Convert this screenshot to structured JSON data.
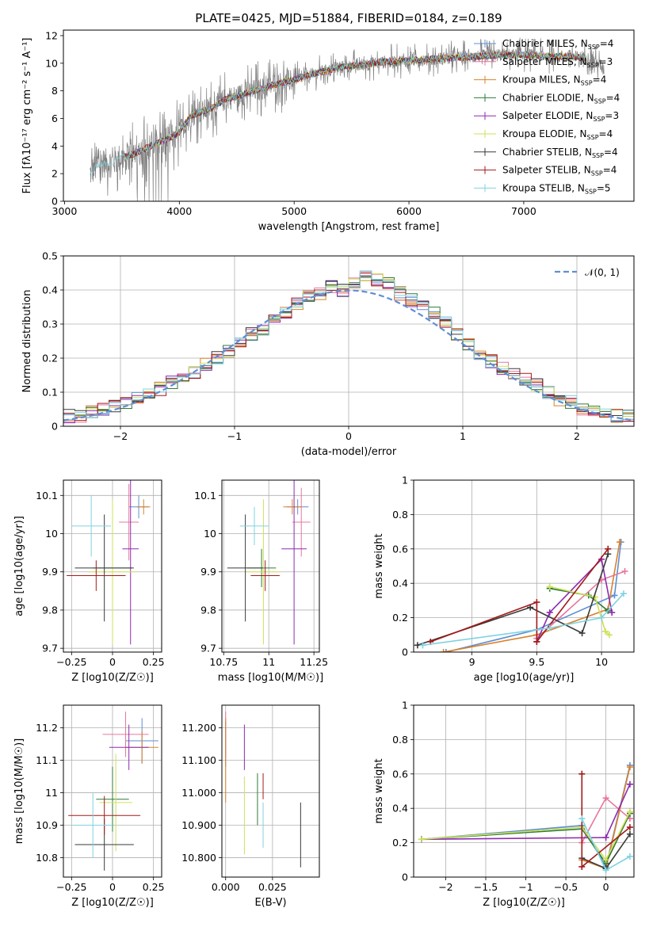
{
  "figure_title": "PLATE=0425, MJD=51884, FIBERID=0184, z=0.189",
  "colors": {
    "Chabrier MILES": "#5f8ed4",
    "Salpeter MILES": "#e8769e",
    "Kroupa MILES": "#d9822b",
    "Chabrier ELODIE": "#2f7a3a",
    "Salpeter ELODIE": "#8e2bb0",
    "Kroupa ELODIE": "#cfe05a",
    "Chabrier STELIB": "#3a3a3a",
    "Salpeter STELIB": "#a31a1a",
    "Kroupa STELIB": "#7fd3e0",
    "data": "#808080",
    "normal": "#5f8ed4"
  },
  "chart_data": [
    {
      "type": "line",
      "id": "spectrum",
      "title": "PLATE=0425, MJD=51884, FIBERID=0184, z=0.189",
      "xlabel": "wavelength [Angstrom, rest frame]",
      "ylabel": "Flux [fλ10⁻¹⁷ erg cm⁻² s⁻¹ A⁻¹]",
      "xlim": [
        2990,
        7960
      ],
      "ylim": [
        0,
        12.4
      ],
      "xticks": [
        3000,
        4000,
        5000,
        6000,
        7000
      ],
      "yticks": [
        0,
        2,
        4,
        6,
        8,
        10,
        12
      ],
      "grid": false,
      "legend_position": "right",
      "legend": [
        "Chabrier MILES, N_SSP=4",
        "Salpeter MILES, N_SSP=3",
        "Kroupa MILES, N_SSP=4",
        "Chabrier ELODIE, N_SSP=4",
        "Salpeter ELODIE, N_SSP=3",
        "Kroupa ELODIE, N_SSP=4",
        "Chabrier STELIB, N_SSP=4",
        "Salpeter STELIB, N_SSP=4",
        "Kroupa STELIB, N_SSP=5"
      ],
      "continuum": {
        "x": [
          3220,
          3300,
          3400,
          3500,
          3600,
          3700,
          3800,
          3900,
          4000,
          4100,
          4200,
          4300,
          4400,
          4500,
          4600,
          4700,
          4800,
          4900,
          5000,
          5200,
          5400,
          5600,
          5800,
          6000,
          6200,
          6400,
          6600,
          6800,
          7000,
          7200,
          7400,
          7600,
          7700
        ],
        "y": [
          2.0,
          2.7,
          2.8,
          3.2,
          3.4,
          3.8,
          4.2,
          4.5,
          5.0,
          6.2,
          6.5,
          6.8,
          7.4,
          7.6,
          7.9,
          8.1,
          8.4,
          8.6,
          8.8,
          9.3,
          9.7,
          9.9,
          10.1,
          10.2,
          10.3,
          10.4,
          10.5,
          10.6,
          10.6,
          10.5,
          10.5,
          10.3,
          9.5
        ]
      }
    },
    {
      "type": "bar",
      "id": "residuals",
      "xlabel": "(data-model)/error",
      "ylabel": "Normed distribution",
      "xlim": [
        -2.5,
        2.5
      ],
      "ylim": [
        0,
        0.5
      ],
      "xticks": [
        -2,
        -1,
        0,
        1,
        2
      ],
      "yticks": [
        0.0,
        0.1,
        0.2,
        0.3,
        0.4,
        0.5
      ],
      "grid": true,
      "legend_position": "top-right",
      "legend": [
        "𝒩(0, 1)"
      ],
      "bin_width": 0.1,
      "bins_start": -2.5,
      "values": [
        0.03,
        0.03,
        0.04,
        0.05,
        0.06,
        0.07,
        0.08,
        0.09,
        0.11,
        0.13,
        0.15,
        0.16,
        0.18,
        0.2,
        0.22,
        0.24,
        0.27,
        0.28,
        0.31,
        0.33,
        0.36,
        0.38,
        0.39,
        0.41,
        0.4,
        0.42,
        0.44,
        0.43,
        0.42,
        0.39,
        0.37,
        0.35,
        0.33,
        0.31,
        0.27,
        0.24,
        0.21,
        0.19,
        0.17,
        0.15,
        0.14,
        0.12,
        0.1,
        0.08,
        0.07,
        0.05,
        0.04,
        0.04,
        0.03,
        0.03
      ]
    },
    {
      "type": "scatter",
      "id": "age_vs_Z",
      "xlabel": "Z [log10(Z/Z☉)]",
      "ylabel": "age  [log10(age/yr)]",
      "xlim": [
        -0.3,
        0.3
      ],
      "ylim": [
        9.69,
        10.14
      ],
      "xticks": [
        -0.25,
        0.0,
        0.25
      ],
      "yticks": [
        9.7,
        9.8,
        9.9,
        10.0,
        10.1
      ],
      "grid": true,
      "points": [
        {
          "name": "Chabrier MILES",
          "x": 0.16,
          "y": 10.07,
          "xerr": 0.06,
          "yerr": 0.03
        },
        {
          "name": "Salpeter MILES",
          "x": 0.1,
          "y": 10.03,
          "xerr": 0.06,
          "yerr": 0.1
        },
        {
          "name": "Kroupa MILES",
          "x": 0.19,
          "y": 10.07,
          "xerr": 0.04,
          "yerr": 0.02
        },
        {
          "name": "Chabrier ELODIE",
          "x": 0.0,
          "y": 9.91,
          "xerr": 0.12,
          "yerr": 0.06
        },
        {
          "name": "Salpeter ELODIE",
          "x": 0.11,
          "y": 9.96,
          "xerr": 0.05,
          "yerr": 0.25
        },
        {
          "name": "Kroupa ELODIE",
          "x": 0.0,
          "y": 9.9,
          "xerr": 0.15,
          "yerr": 0.19
        },
        {
          "name": "Chabrier STELIB",
          "x": -0.05,
          "y": 9.91,
          "xerr": 0.18,
          "yerr": 0.14
        },
        {
          "name": "Salpeter STELIB",
          "x": -0.1,
          "y": 9.89,
          "xerr": 0.18,
          "yerr": 0.04
        },
        {
          "name": "Kroupa STELIB",
          "x": -0.13,
          "y": 10.02,
          "xerr": 0.12,
          "yerr": 0.08
        }
      ]
    },
    {
      "type": "scatter",
      "id": "age_vs_mass",
      "xlabel": "mass [log10(M/M☉)]",
      "ylabel": "",
      "xlim": [
        10.74,
        11.28
      ],
      "ylim": [
        9.69,
        10.14
      ],
      "xticks": [
        10.75,
        11.0,
        11.25
      ],
      "yticks": [
        9.7,
        9.8,
        9.9,
        10.0,
        10.1
      ],
      "grid": true,
      "points": [
        {
          "name": "Chabrier MILES",
          "x": 11.16,
          "y": 10.07,
          "xerr": 0.06,
          "yerr": 0.02
        },
        {
          "name": "Salpeter MILES",
          "x": 11.18,
          "y": 10.03,
          "xerr": 0.05,
          "yerr": 0.09
        },
        {
          "name": "Kroupa MILES",
          "x": 11.13,
          "y": 10.07,
          "xerr": 0.05,
          "yerr": 0.02
        },
        {
          "name": "Chabrier ELODIE",
          "x": 10.96,
          "y": 9.91,
          "xerr": 0.08,
          "yerr": 0.05
        },
        {
          "name": "Salpeter ELODIE",
          "x": 11.14,
          "y": 9.96,
          "xerr": 0.07,
          "yerr": 0.25
        },
        {
          "name": "Kroupa ELODIE",
          "x": 10.97,
          "y": 9.9,
          "xerr": 0.1,
          "yerr": 0.19
        },
        {
          "name": "Chabrier STELIB",
          "x": 10.87,
          "y": 9.91,
          "xerr": 0.1,
          "yerr": 0.14
        },
        {
          "name": "Salpeter STELIB",
          "x": 10.98,
          "y": 9.89,
          "xerr": 0.08,
          "yerr": 0.04
        },
        {
          "name": "Kroupa STELIB",
          "x": 10.92,
          "y": 10.02,
          "xerr": 0.08,
          "yerr": 0.05
        }
      ]
    },
    {
      "type": "line",
      "id": "weight_vs_age",
      "xlabel": "age  [log10(age/yr)]",
      "ylabel": "mass weight",
      "xlim": [
        8.55,
        10.25
      ],
      "ylim": [
        0,
        1.0
      ],
      "xticks": [
        9.0,
        9.5,
        10.0
      ],
      "yticks": [
        0.0,
        0.2,
        0.4,
        0.6,
        0.8,
        1.0
      ],
      "grid": true,
      "series": [
        {
          "name": "Chabrier MILES",
          "x": [
            8.8,
            9.5,
            10.1,
            10.15
          ],
          "y": [
            0.0,
            0.13,
            0.33,
            0.64
          ]
        },
        {
          "name": "Salpeter MILES",
          "x": [
            9.5,
            10.0,
            10.18
          ],
          "y": [
            0.08,
            0.42,
            0.47
          ]
        },
        {
          "name": "Kroupa MILES",
          "x": [
            8.78,
            9.5,
            10.05,
            10.14
          ],
          "y": [
            0.0,
            0.1,
            0.25,
            0.64
          ]
        },
        {
          "name": "Chabrier ELODIE",
          "x": [
            9.6,
            9.9,
            10.05
          ],
          "y": [
            0.37,
            0.33,
            0.24
          ]
        },
        {
          "name": "Salpeter ELODIE",
          "x": [
            9.5,
            9.6,
            10.0,
            10.08
          ],
          "y": [
            0.06,
            0.23,
            0.54,
            0.23
          ]
        },
        {
          "name": "Kroupa ELODIE",
          "x": [
            9.6,
            9.95,
            10.03,
            10.06
          ],
          "y": [
            0.38,
            0.32,
            0.12,
            0.1
          ]
        },
        {
          "name": "Chabrier STELIB",
          "x": [
            8.58,
            9.45,
            9.85,
            10.05
          ],
          "y": [
            0.04,
            0.26,
            0.11,
            0.57
          ]
        },
        {
          "name": "Salpeter STELIB",
          "x": [
            8.68,
            9.5,
            9.5,
            10.05
          ],
          "y": [
            0.06,
            0.29,
            0.06,
            0.6
          ]
        },
        {
          "name": "Kroupa STELIB",
          "x": [
            8.62,
            9.6,
            10.0,
            10.17
          ],
          "y": [
            0.04,
            0.14,
            0.2,
            0.34
          ]
        }
      ]
    },
    {
      "type": "scatter",
      "id": "mass_vs_Z",
      "xlabel": "Z [log10(Z/Z☉)]",
      "ylabel": "mass [log10(M/M☉)]",
      "xlim": [
        -0.3,
        0.3
      ],
      "ylim": [
        10.74,
        11.27
      ],
      "xticks": [
        -0.25,
        0.0,
        0.25
      ],
      "yticks": [
        10.8,
        10.9,
        11.0,
        11.1,
        11.2
      ],
      "grid": true,
      "points": [
        {
          "name": "Chabrier MILES",
          "x": 0.18,
          "y": 11.16,
          "xerr": 0.1,
          "yerr": 0.07
        },
        {
          "name": "Salpeter MILES",
          "x": 0.08,
          "y": 11.18,
          "xerr": 0.14,
          "yerr": 0.07
        },
        {
          "name": "Kroupa MILES",
          "x": 0.18,
          "y": 11.14,
          "xerr": 0.1,
          "yerr": 0.05
        },
        {
          "name": "Chabrier ELODIE",
          "x": 0.0,
          "y": 10.98,
          "xerr": 0.1,
          "yerr": 0.1
        },
        {
          "name": "Salpeter ELODIE",
          "x": 0.1,
          "y": 11.14,
          "xerr": 0.12,
          "yerr": 0.07
        },
        {
          "name": "Kroupa ELODIE",
          "x": 0.02,
          "y": 10.97,
          "xerr": 0.1,
          "yerr": 0.15
        },
        {
          "name": "Chabrier STELIB",
          "x": -0.05,
          "y": 10.84,
          "xerr": 0.18,
          "yerr": 0.08
        },
        {
          "name": "Salpeter STELIB",
          "x": -0.05,
          "y": 10.93,
          "xerr": 0.22,
          "yerr": 0.06
        },
        {
          "name": "Kroupa STELIB",
          "x": -0.12,
          "y": 10.9,
          "xerr": 0.12,
          "yerr": 0.1
        }
      ]
    },
    {
      "type": "scatter",
      "id": "mass_vs_EBV",
      "xlabel": "E(B-V)",
      "ylabel": "",
      "xlim": [
        -0.002,
        0.05
      ],
      "ylim": [
        10.74,
        11.27
      ],
      "xticks": [
        0.0,
        0.025
      ],
      "yticks": [
        10.8,
        10.9,
        11.0,
        11.1,
        11.2
      ],
      "grid": true,
      "points": [
        {
          "name": "Chabrier MILES",
          "x": 0.0,
          "y": 11.15,
          "xerr": 0,
          "yerr": 0.07
        },
        {
          "name": "Salpeter MILES",
          "x": 0.0,
          "y": 11.18,
          "xerr": 0,
          "yerr": 0.07
        },
        {
          "name": "Kroupa MILES",
          "x": 0.0,
          "y": 11.1,
          "xerr": 0,
          "yerr": 0.13
        },
        {
          "name": "Chabrier ELODIE",
          "x": 0.017,
          "y": 10.98,
          "xerr": 0,
          "yerr": 0.08
        },
        {
          "name": "Salpeter ELODIE",
          "x": 0.01,
          "y": 11.14,
          "xerr": 0,
          "yerr": 0.07
        },
        {
          "name": "Kroupa ELODIE",
          "x": 0.01,
          "y": 10.93,
          "xerr": 0,
          "yerr": 0.12
        },
        {
          "name": "Chabrier STELIB",
          "x": 0.04,
          "y": 10.87,
          "xerr": 0,
          "yerr": 0.1
        },
        {
          "name": "Salpeter STELIB",
          "x": 0.02,
          "y": 11.02,
          "xerr": 0,
          "yerr": 0.04
        },
        {
          "name": "Kroupa STELIB",
          "x": 0.02,
          "y": 10.9,
          "xerr": 0,
          "yerr": 0.07
        }
      ]
    },
    {
      "type": "line",
      "id": "weight_vs_Z",
      "xlabel": "Z [log10(Z/Z☉)]",
      "ylabel": "mass weight",
      "xlim": [
        -2.4,
        0.35
      ],
      "ylim": [
        0,
        1.0
      ],
      "xticks": [
        -2.0,
        -1.5,
        -1.0,
        -0.5,
        0.0
      ],
      "yticks": [
        0.0,
        0.2,
        0.4,
        0.6,
        0.8,
        1.0
      ],
      "grid": true,
      "series": [
        {
          "name": "Chabrier MILES",
          "x": [
            -2.3,
            -0.3,
            0.0,
            0.3
          ],
          "y": [
            0.22,
            0.3,
            0.06,
            0.65
          ]
        },
        {
          "name": "Salpeter MILES",
          "x": [
            -0.3,
            0.0,
            0.3
          ],
          "y": [
            0.2,
            0.46,
            0.34
          ]
        },
        {
          "name": "Kroupa MILES",
          "x": [
            -0.3,
            0.0,
            0.3
          ],
          "y": [
            0.1,
            0.05,
            0.64
          ]
        },
        {
          "name": "Chabrier ELODIE",
          "x": [
            -2.3,
            -0.3,
            0.0,
            0.3
          ],
          "y": [
            0.22,
            0.28,
            0.08,
            0.37
          ]
        },
        {
          "name": "Salpeter ELODIE",
          "x": [
            -2.3,
            0.0,
            0.3
          ],
          "y": [
            0.22,
            0.23,
            0.54
          ]
        },
        {
          "name": "Kroupa ELODIE",
          "x": [
            -2.3,
            -0.3,
            0.0,
            0.3
          ],
          "y": [
            0.22,
            0.29,
            0.1,
            0.38
          ]
        },
        {
          "name": "Chabrier STELIB",
          "x": [
            -0.3,
            0.0,
            0.3
          ],
          "y": [
            0.11,
            0.05,
            0.25
          ]
        },
        {
          "name": "Salpeter STELIB",
          "x": [
            -0.3,
            -0.3,
            0.3
          ],
          "y": [
            0.6,
            0.06,
            0.29
          ]
        },
        {
          "name": "Kroupa STELIB",
          "x": [
            -0.3,
            0.0,
            0.3
          ],
          "y": [
            0.34,
            0.04,
            0.12
          ]
        }
      ]
    }
  ]
}
